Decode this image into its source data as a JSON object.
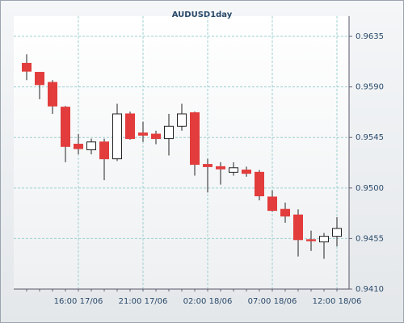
{
  "chart_data": {
    "type": "candlestick",
    "title": "AUDUSD1day",
    "categories": [
      null,
      null,
      null,
      null,
      "16:00 17/06",
      null,
      null,
      null,
      null,
      "21:00 17/06",
      null,
      null,
      null,
      null,
      "02:00 18/06",
      null,
      null,
      null,
      null,
      "07:00 18/06",
      null,
      null,
      null,
      null,
      "12:00 18/06"
    ],
    "open": [
      0.9611,
      0.9603,
      0.9594,
      0.9572,
      0.9539,
      0.9534,
      0.9541,
      0.9526,
      0.9566,
      0.9549,
      0.9548,
      0.9544,
      0.9555,
      0.9567,
      0.9521,
      0.9519,
      0.9514,
      0.9516,
      0.9514,
      0.9492,
      0.9481,
      0.9476,
      0.9454,
      0.9452,
      0.9457
    ],
    "high": [
      0.9619,
      0.9603,
      0.9596,
      0.9573,
      0.9548,
      0.9544,
      0.9544,
      0.9575,
      0.9568,
      0.9559,
      0.9551,
      0.9566,
      0.9575,
      0.9568,
      0.9526,
      0.9523,
      0.9523,
      0.9519,
      0.9516,
      0.9498,
      0.9487,
      0.9481,
      0.9462,
      0.946,
      0.9474
    ],
    "low": [
      0.9596,
      0.9579,
      0.9566,
      0.9523,
      0.953,
      0.953,
      0.9507,
      0.9524,
      0.9543,
      0.9541,
      0.9539,
      0.9529,
      0.9551,
      0.9511,
      0.9496,
      0.9503,
      0.9511,
      0.951,
      0.9489,
      0.9479,
      0.9469,
      0.9439,
      0.9444,
      0.9437,
      0.9448
    ],
    "close": [
      0.9604,
      0.9592,
      0.9573,
      0.9537,
      0.9535,
      0.9541,
      0.9526,
      0.9566,
      0.9544,
      0.9547,
      0.9544,
      0.9555,
      0.9566,
      0.9521,
      0.9519,
      0.9517,
      0.9518,
      0.9513,
      0.9493,
      0.948,
      0.9475,
      0.9454,
      0.9453,
      0.9457,
      0.9464
    ],
    "up_color": "#ffffff",
    "down_color": "#e23c3c",
    "ylim": [
      0.941,
      0.9653
    ],
    "yticks": [
      {
        "value": 0.941,
        "label": "0.9410"
      },
      0.9455,
      {
        "value": 0.95,
        "label": "0.9500"
      },
      0.9545,
      {
        "value": 0.959,
        "label": "0.9590"
      },
      0.9635
    ],
    "grid": true
  }
}
